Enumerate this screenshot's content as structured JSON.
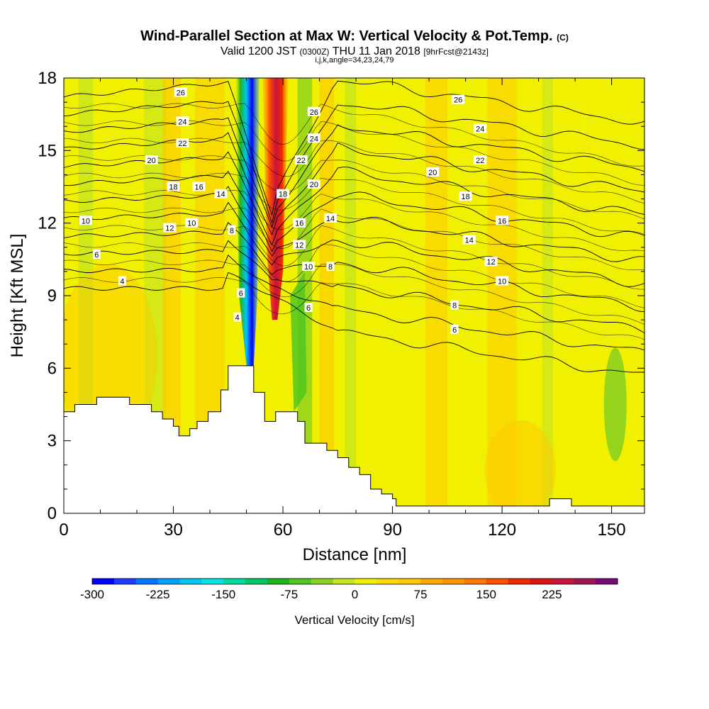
{
  "chart_data": {
    "type": "heatmap",
    "title": "Wind-Parallel Section at Max W: Vertical Velocity & Pot.Temp.",
    "title_units": "(C)",
    "subtitle": {
      "valid": "Valid 1200 JST",
      "zulu": "(0300Z)",
      "date": "THU 11 Jan 2018",
      "forecast": "[9hrFcst@2143z]",
      "indices": "i,j,k,angle=34,23,24,79"
    },
    "xlabel": "Distance [nm]",
    "ylabel": "Height [Kft MSL]",
    "xlim": [
      0,
      159
    ],
    "ylim": [
      0,
      18
    ],
    "x_ticks": [
      {
        "value": 0,
        "label": "0"
      },
      {
        "value": 30,
        "label": "30"
      },
      {
        "value": 60,
        "label": "60"
      },
      {
        "value": 90,
        "label": "90"
      },
      {
        "value": 120,
        "label": "120"
      },
      {
        "value": 150,
        "label": "150"
      }
    ],
    "y_ticks": [
      {
        "value": 0,
        "label": "0"
      },
      {
        "value": 3,
        "label": "3"
      },
      {
        "value": 6,
        "label": "6"
      },
      {
        "value": 9,
        "label": "9"
      },
      {
        "value": 12,
        "label": "12"
      },
      {
        "value": 15,
        "label": "15"
      },
      {
        "value": 18,
        "label": "18"
      }
    ],
    "colorbar": {
      "label": "Vertical Velocity [cm/s]",
      "min": -300,
      "max": 300,
      "step": 25,
      "tick_labels": [
        {
          "value": -300,
          "label": "-300"
        },
        {
          "value": -225,
          "label": "-225"
        },
        {
          "value": -150,
          "label": "-150"
        },
        {
          "value": -75,
          "label": "-75"
        },
        {
          "value": 0,
          "label": "0"
        },
        {
          "value": 75,
          "label": "75"
        },
        {
          "value": 150,
          "label": "150"
        },
        {
          "value": 225,
          "label": "225"
        }
      ],
      "colors": [
        "#0000ff",
        "#1e3cff",
        "#0078ff",
        "#00a0ff",
        "#00c8f0",
        "#00e6e6",
        "#00dca0",
        "#00c864",
        "#1eb41e",
        "#50c81e",
        "#8cd21e",
        "#c8e61e",
        "#f0f000",
        "#fadc00",
        "#ffc800",
        "#ffaa00",
        "#ff9600",
        "#ff7800",
        "#ff5000",
        "#f02800",
        "#dc1414",
        "#c8143c",
        "#a01450",
        "#780a78"
      ]
    },
    "contour_field": "Potential Temperature (C)",
    "contour_levels": [
      4,
      6,
      8,
      10,
      12,
      14,
      16,
      18,
      20,
      22,
      24,
      26
    ],
    "terrain_profile": [
      [
        0,
        4.2
      ],
      [
        3,
        4.2
      ],
      [
        3,
        4.5
      ],
      [
        9,
        4.5
      ],
      [
        9,
        4.8
      ],
      [
        18,
        4.8
      ],
      [
        18,
        4.5
      ],
      [
        24,
        4.5
      ],
      [
        24,
        4.2
      ],
      [
        27,
        4.2
      ],
      [
        27,
        3.9
      ],
      [
        30,
        3.9
      ],
      [
        30,
        3.6
      ],
      [
        31.5,
        3.6
      ],
      [
        31.5,
        3.2
      ],
      [
        34.5,
        3.2
      ],
      [
        34.5,
        3.5
      ],
      [
        36.5,
        3.5
      ],
      [
        36.5,
        3.8
      ],
      [
        39.5,
        3.8
      ],
      [
        39.5,
        4.2
      ],
      [
        43,
        4.2
      ],
      [
        43,
        5.1
      ],
      [
        45,
        5.1
      ],
      [
        45,
        6.1
      ],
      [
        52,
        6.1
      ],
      [
        52,
        5.0
      ],
      [
        55,
        5.0
      ],
      [
        55,
        3.8
      ],
      [
        58,
        3.8
      ],
      [
        58,
        4.2
      ],
      [
        64,
        4.2
      ],
      [
        64,
        3.8
      ],
      [
        66,
        3.8
      ],
      [
        66,
        2.9
      ],
      [
        72,
        2.9
      ],
      [
        72,
        2.6
      ],
      [
        75,
        2.6
      ],
      [
        75,
        2.3
      ],
      [
        78,
        2.3
      ],
      [
        78,
        1.9
      ],
      [
        81,
        1.9
      ],
      [
        81,
        1.6
      ],
      [
        84,
        1.6
      ],
      [
        84,
        1.0
      ],
      [
        87,
        1.0
      ],
      [
        87,
        0.8
      ],
      [
        90,
        0.8
      ],
      [
        90,
        0.6
      ],
      [
        91,
        0.6
      ],
      [
        91,
        0.3
      ],
      [
        133,
        0.3
      ],
      [
        133,
        0.6
      ],
      [
        139,
        0.6
      ],
      [
        139,
        0.3
      ],
      [
        159,
        0.3
      ]
    ],
    "updraft_core": {
      "x": 58,
      "peak_cm_s": 225
    },
    "downdraft_core": {
      "x": 51,
      "peak_cm_s": -300
    },
    "contour_labels": [
      {
        "text": "26",
        "x": 32,
        "y": 17.4
      },
      {
        "text": "24",
        "x": 32.5,
        "y": 16.2
      },
      {
        "text": "22",
        "x": 32.5,
        "y": 15.3
      },
      {
        "text": "20",
        "x": 24,
        "y": 14.6
      },
      {
        "text": "18",
        "x": 30,
        "y": 13.5
      },
      {
        "text": "16",
        "x": 37,
        "y": 13.5
      },
      {
        "text": "14",
        "x": 43,
        "y": 13.2
      },
      {
        "text": "12",
        "x": 29,
        "y": 11.8
      },
      {
        "text": "10",
        "x": 35,
        "y": 12.0
      },
      {
        "text": "10",
        "x": 6,
        "y": 12.1
      },
      {
        "text": "8",
        "x": 46,
        "y": 11.7
      },
      {
        "text": "6",
        "x": 9,
        "y": 10.7
      },
      {
        "text": "4",
        "x": 16,
        "y": 9.6
      },
      {
        "text": "6",
        "x": 48.5,
        "y": 9.1
      },
      {
        "text": "4",
        "x": 47.5,
        "y": 8.1
      },
      {
        "text": "26",
        "x": 68.5,
        "y": 16.6
      },
      {
        "text": "24",
        "x": 68.5,
        "y": 15.5
      },
      {
        "text": "22",
        "x": 65,
        "y": 14.6
      },
      {
        "text": "20",
        "x": 68.5,
        "y": 13.6
      },
      {
        "text": "18",
        "x": 60,
        "y": 13.2
      },
      {
        "text": "16",
        "x": 64.5,
        "y": 12.0
      },
      {
        "text": "14",
        "x": 73,
        "y": 12.2
      },
      {
        "text": "12",
        "x": 64.5,
        "y": 11.1
      },
      {
        "text": "10",
        "x": 67,
        "y": 10.2
      },
      {
        "text": "8",
        "x": 73,
        "y": 10.2
      },
      {
        "text": "6",
        "x": 67,
        "y": 8.5
      },
      {
        "text": "26",
        "x": 108,
        "y": 17.1
      },
      {
        "text": "24",
        "x": 114,
        "y": 15.9
      },
      {
        "text": "22",
        "x": 114,
        "y": 14.6
      },
      {
        "text": "20",
        "x": 101,
        "y": 14.1
      },
      {
        "text": "18",
        "x": 110,
        "y": 13.1
      },
      {
        "text": "16",
        "x": 120,
        "y": 12.1
      },
      {
        "text": "14",
        "x": 111,
        "y": 11.3
      },
      {
        "text": "12",
        "x": 117,
        "y": 10.4
      },
      {
        "text": "10",
        "x": 120,
        "y": 9.6
      },
      {
        "text": "8",
        "x": 107,
        "y": 8.6
      },
      {
        "text": "6",
        "x": 107,
        "y": 7.6
      }
    ]
  }
}
